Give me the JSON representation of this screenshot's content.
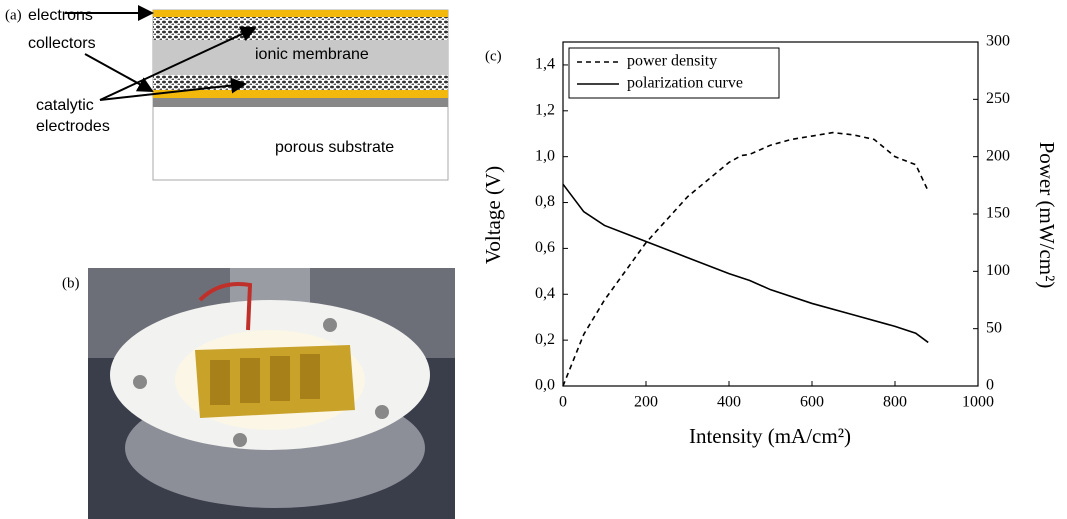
{
  "panel_a": {
    "label": "(a)",
    "electrons_collectors": [
      "electrons",
      "collectors"
    ],
    "catalytic_electrodes": [
      "catalytic",
      "electrodes"
    ],
    "ionic_membrane": "ionic membrane",
    "porous_substrate": "porous substrate"
  },
  "panel_b": {
    "label": "(b)"
  },
  "chart_data": {
    "type": "line",
    "label": "(c)",
    "x_label": "Intensity (mA/cm²)",
    "y_label": "Voltage (V)",
    "y2_label": "Power (mW/cm²)",
    "xlim": [
      0,
      1000
    ],
    "xticks": [
      0,
      200,
      400,
      600,
      800,
      1000
    ],
    "ylim": [
      0,
      1.5
    ],
    "yticks": [
      {
        "value": 0,
        "label": "0,0"
      },
      {
        "value": 0.2,
        "label": "0,2"
      },
      {
        "value": 0.4,
        "label": "0,4"
      },
      {
        "value": 0.6,
        "label": "0,6"
      },
      {
        "value": 0.8,
        "label": "0,8"
      },
      {
        "value": 1.0,
        "label": "1,0"
      },
      {
        "value": 1.2,
        "label": "1,2"
      },
      {
        "value": 1.4,
        "label": "1,4"
      }
    ],
    "y2lim": [
      0,
      300
    ],
    "y2ticks": [
      0,
      50,
      100,
      150,
      200,
      250,
      300
    ],
    "legend": "upper left",
    "series": [
      {
        "name": "power density",
        "color": "#000000",
        "style": "dashed",
        "axis": "y2",
        "x": [
          0,
          50,
          100,
          200,
          300,
          400,
          430,
          450,
          500,
          550,
          600,
          650,
          700,
          750,
          800,
          850,
          880
        ],
        "values": [
          0,
          45,
          75,
          125,
          165,
          195,
          201,
          202,
          210,
          215,
          218,
          221,
          219,
          215,
          200,
          193,
          170
        ]
      },
      {
        "name": "polarization curve",
        "color": "#000000",
        "style": "solid",
        "x": [
          0,
          50,
          100,
          200,
          300,
          400,
          450,
          500,
          600,
          700,
          800,
          850,
          880
        ],
        "values": [
          0.88,
          0.76,
          0.7,
          0.63,
          0.56,
          0.49,
          0.46,
          0.42,
          0.36,
          0.31,
          0.26,
          0.23,
          0.19
        ]
      }
    ]
  }
}
